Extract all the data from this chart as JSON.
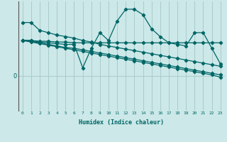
{
  "xlabel": "Humidex (Indice chaleur)",
  "background_color": "#cce8e8",
  "line_color": "#006666",
  "grid_color": "#aacccc",
  "x_min": 0,
  "x_max": 23,
  "y_min": -4.5,
  "y_max": 9.5,
  "series": [
    {
      "x": [
        0,
        1,
        2,
        3,
        4,
        5,
        6,
        7,
        8,
        9,
        10,
        11,
        12,
        13,
        14,
        15,
        16,
        17,
        18,
        19,
        20,
        21,
        22,
        23
      ],
      "y": [
        6.8,
        6.8,
        5.8,
        5.5,
        5.2,
        5.0,
        4.8,
        4.5,
        4.3,
        4.0,
        3.8,
        3.6,
        3.4,
        3.2,
        3.0,
        2.8,
        2.6,
        2.4,
        2.2,
        2.0,
        1.8,
        1.6,
        1.4,
        1.2
      ]
    },
    {
      "x": [
        0,
        1,
        2,
        3,
        4,
        5,
        6,
        7,
        8,
        9,
        10,
        11,
        12,
        13,
        14,
        15,
        16,
        17,
        18,
        19,
        20,
        21,
        22,
        23
      ],
      "y": [
        4.5,
        4.5,
        4.3,
        4.2,
        4.1,
        4.0,
        4.0,
        1.0,
        3.5,
        5.5,
        4.5,
        7.0,
        8.5,
        8.5,
        7.8,
        6.0,
        5.0,
        4.2,
        4.0,
        3.8,
        5.5,
        5.5,
        3.5,
        1.5
      ]
    },
    {
      "x": [
        0,
        1,
        2,
        3,
        4,
        5,
        6,
        7,
        8,
        9,
        10,
        11,
        12,
        13,
        14,
        15,
        16,
        17,
        18,
        19,
        20,
        21,
        22,
        23
      ],
      "y": [
        4.5,
        4.5,
        4.4,
        4.4,
        4.3,
        4.3,
        4.2,
        4.2,
        4.2,
        4.2,
        4.2,
        4.2,
        4.2,
        4.2,
        4.2,
        4.2,
        4.2,
        4.2,
        4.2,
        4.2,
        4.2,
        4.2,
        4.2,
        4.2
      ]
    },
    {
      "x": [
        0,
        1,
        2,
        3,
        4,
        5,
        6,
        7,
        8,
        9,
        10,
        11,
        12,
        13,
        14,
        15,
        16,
        17,
        18,
        19,
        20,
        21,
        22,
        23
      ],
      "y": [
        4.5,
        4.4,
        4.2,
        4.0,
        3.8,
        3.6,
        3.5,
        3.3,
        3.1,
        2.9,
        2.7,
        2.5,
        2.3,
        2.1,
        1.9,
        1.7,
        1.5,
        1.3,
        1.1,
        0.9,
        0.7,
        0.5,
        0.3,
        0.1
      ]
    },
    {
      "x": [
        0,
        1,
        2,
        3,
        4,
        5,
        6,
        7,
        8,
        9,
        10,
        11,
        12,
        13,
        14,
        15,
        16,
        17,
        18,
        19,
        20,
        21,
        22,
        23
      ],
      "y": [
        4.5,
        4.3,
        4.1,
        3.9,
        3.7,
        3.5,
        3.3,
        3.1,
        2.9,
        2.7,
        2.5,
        2.3,
        2.1,
        1.9,
        1.7,
        1.5,
        1.3,
        1.1,
        0.9,
        0.7,
        0.5,
        0.3,
        0.1,
        -0.2
      ]
    }
  ]
}
